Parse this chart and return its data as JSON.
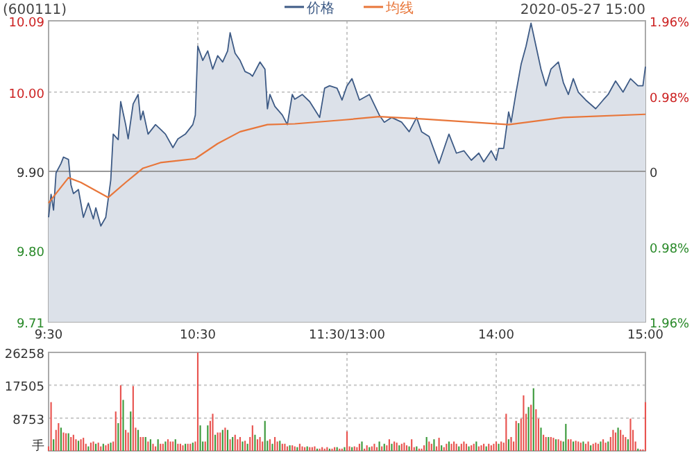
{
  "chart_data": [
    {
      "type": "area",
      "title": "(600111)",
      "annotations": [
        "2020-05-27 15:00"
      ],
      "legend": "top",
      "grid": true,
      "categories": [
        "9:30",
        null,
        null,
        null,
        null,
        null,
        null,
        null,
        null,
        null,
        null,
        null,
        null,
        null,
        null,
        null,
        null,
        null,
        null,
        null,
        null,
        null,
        null,
        null,
        null,
        null,
        null,
        null,
        null,
        null,
        null,
        null,
        null,
        null,
        null,
        null,
        null,
        null,
        null,
        null,
        null,
        null,
        null,
        null,
        null,
        null,
        null,
        null,
        null,
        null,
        null,
        null,
        null,
        null,
        null,
        null,
        null,
        null,
        null,
        null,
        "10:30",
        null,
        null,
        null,
        null,
        null,
        null,
        null,
        null,
        null,
        null,
        null,
        null,
        null,
        null,
        null,
        null,
        null,
        null,
        null,
        null,
        null,
        null,
        null,
        null,
        null,
        null,
        null,
        null,
        null,
        null,
        null,
        null,
        null,
        null,
        null,
        null,
        null,
        null,
        null,
        null,
        null,
        null,
        null,
        null,
        null,
        null,
        null,
        null,
        null,
        null,
        null,
        null,
        null,
        null,
        null,
        null,
        null,
        null,
        null,
        "11:30/13:00",
        null,
        null,
        null,
        null,
        null,
        null,
        null,
        null,
        null,
        null,
        null,
        null,
        null,
        null,
        null,
        null,
        null,
        null,
        null,
        null,
        null,
        null,
        null,
        null,
        null,
        null,
        null,
        null,
        null,
        null,
        null,
        null,
        null,
        null,
        null,
        null,
        null,
        null,
        null,
        null,
        null,
        null,
        null,
        null,
        null,
        null,
        null,
        null,
        null,
        null,
        null,
        null,
        null,
        null,
        null,
        null,
        null,
        null,
        null,
        "14:00",
        null,
        null,
        null,
        null,
        null,
        null,
        null,
        null,
        null,
        null,
        null,
        null,
        null,
        null,
        null,
        null,
        null,
        null,
        null,
        null,
        null,
        null,
        null,
        null,
        null,
        null,
        null,
        null,
        null,
        null,
        null,
        null,
        null,
        null,
        null,
        null,
        null,
        null,
        null,
        null,
        null,
        null,
        null,
        null,
        null,
        null,
        null,
        null,
        null,
        null,
        null,
        null,
        null,
        null,
        null,
        null,
        null,
        null,
        null,
        "15:00"
      ],
      "ylim": [
        9.71,
        10.09
      ],
      "yticks": [
        {
          "value": 9.71,
          "label": "9.71"
        },
        {
          "value": 9.8,
          "label": "9.80"
        },
        {
          "value": 9.9,
          "label": "9.90"
        },
        {
          "value": 10,
          "label": "10.00"
        },
        {
          "value": 10.09,
          "label": "10.09"
        }
      ],
      "y2lim": [
        -1.96,
        1.96
      ],
      "y2ticks": [
        {
          "value": -1.96,
          "label": "1.96%"
        },
        {
          "value": -0.98,
          "label": "0.98%"
        },
        0,
        {
          "value": 0.98,
          "label": "0.98%"
        },
        {
          "value": 1.96,
          "label": "1.96%"
        }
      ],
      "ref_lines": [
        {
          "axis": "y",
          "value": 9.9,
          "color": "#999999"
        }
      ],
      "series": [
        {
          "name": "价格",
          "type": "area",
          "color": "#3d5a85",
          "values": [
            9.842,
            9.871,
            9.851,
            9.898,
            null,
            9.91,
            9.918,
            null,
            9.915,
            9.883,
            9.872,
            null,
            9.877,
            null,
            9.842,
            null,
            9.86,
            null,
            9.84,
            9.854,
            null,
            9.831,
            null,
            9.842,
            null,
            9.889,
            9.947,
            null,
            9.94,
            9.988,
            null,
            9.959,
            9.941,
            null,
            9.985,
            null,
            9.997,
            9.965,
            9.976,
            null,
            9.947,
            null,
            null,
            9.959,
            null,
            9.953,
            null,
            9.947,
            null,
            null,
            9.93,
            null,
            9.941,
            null,
            null,
            9.947,
            null,
            null,
            9.959,
            9.971,
            10.058,
            null,
            10.04,
            null,
            10.052,
            null,
            10.029,
            null,
            10.046,
            null,
            10.038,
            null,
            10.052,
            10.075,
            null,
            10.049,
            null,
            10.04,
            null,
            10.026,
            null,
            10.023,
            10.02,
            null,
            10.032,
            10.038,
            null,
            10.029,
            9.979,
            9.997,
            null,
            9.982,
            null,
            null,
            9.971,
            null,
            9.959,
            null,
            9.997,
            9.991,
            null,
            null,
            9.997,
            null,
            null,
            9.988,
            null,
            null,
            null,
            9.968,
            null,
            10.005,
            null,
            10.008,
            null,
            null,
            10.005,
            null,
            9.99,
            null,
            10.008,
            null,
            10.017,
            null,
            null,
            9.99,
            null,
            null,
            null,
            9.997,
            null,
            null,
            null,
            9.971,
            null,
            9.962,
            null,
            null,
            9.968,
            null,
            null,
            null,
            9.962,
            null,
            null,
            9.95,
            null,
            null,
            9.968,
            null,
            9.95,
            null,
            null,
            9.944,
            null,
            null,
            null,
            9.91,
            null,
            null,
            null,
            9.947,
            null,
            null,
            9.923,
            null,
            null,
            9.926,
            null,
            null,
            9.914,
            null,
            null,
            9.923,
            null,
            9.912,
            null,
            null,
            9.926,
            null,
            9.914,
            9.929,
            null,
            9.929,
            null,
            9.975,
            9.962,
            null,
            10.0,
            null,
            10.035,
            null,
            10.058,
            null,
            10.087,
            null,
            10.058,
            null,
            10.029,
            null,
            10.008,
            null,
            10.029,
            null,
            null,
            10.038,
            null,
            10.012,
            null,
            9.997,
            null,
            10.017,
            null,
            10.0,
            null,
            null,
            9.99,
            null,
            null,
            null,
            9.979,
            null,
            null,
            9.99,
            null,
            9.997,
            null,
            null,
            10.014,
            null,
            null,
            10.0,
            null,
            null,
            10.017,
            null,
            null,
            10.008,
            null,
            10.008,
            10.032
          ]
        },
        {
          "name": "均线",
          "type": "line",
          "color": "#e8763a",
          "values": [
            9.86,
            null,
            null,
            null,
            null,
            null,
            null,
            null,
            9.892,
            null,
            null,
            null,
            null,
            9.886,
            null,
            null,
            null,
            null,
            null,
            null,
            null,
            null,
            null,
            null,
            9.867,
            null,
            null,
            null,
            null,
            null,
            null,
            9.886,
            null,
            null,
            null,
            null,
            null,
            null,
            9.904,
            null,
            null,
            null,
            null,
            null,
            null,
            9.911,
            null,
            null,
            null,
            null,
            null,
            null,
            null,
            null,
            null,
            null,
            null,
            null,
            null,
            9.916,
            null,
            null,
            null,
            null,
            null,
            null,
            null,
            null,
            9.935,
            null,
            null,
            null,
            null,
            null,
            null,
            null,
            null,
            9.95,
            null,
            null,
            null,
            null,
            null,
            null,
            null,
            null,
            null,
            null,
            9.959,
            null,
            null,
            null,
            null,
            null,
            null,
            null,
            null,
            null,
            null,
            9.96,
            null,
            null,
            null,
            null,
            null,
            null,
            null,
            null,
            null,
            null,
            null,
            null,
            null,
            null,
            null,
            null,
            null,
            null,
            null,
            9.965,
            null,
            null,
            null,
            null,
            null,
            null,
            null,
            null,
            null,
            null,
            null,
            null,
            null,
            9.969,
            null,
            null,
            null,
            null,
            null,
            null,
            null,
            null,
            null,
            null,
            null,
            null,
            null,
            null,
            null,
            null,
            null,
            9.966,
            null,
            null,
            null,
            null,
            null,
            null,
            null,
            null,
            null,
            null,
            null,
            null,
            null,
            null,
            null,
            null,
            null,
            null,
            null,
            null,
            null,
            null,
            null,
            null,
            null,
            null,
            null,
            null,
            null,
            null,
            null,
            null,
            null,
            9.959,
            null,
            null,
            null,
            null,
            null,
            null,
            null,
            null,
            null,
            null,
            null,
            null,
            null,
            null,
            null,
            null,
            null,
            null,
            null,
            null,
            null,
            9.968,
            null,
            null,
            null,
            null,
            null,
            null,
            null,
            null,
            null,
            null,
            null,
            null,
            null,
            null,
            null,
            null,
            null,
            null,
            null,
            null,
            null,
            null,
            null,
            null,
            null,
            null,
            null,
            null,
            null,
            null,
            null,
            null,
            9.972
          ]
        }
      ]
    },
    {
      "type": "bar",
      "grid": true,
      "tick_labels": "y",
      "categories": [
        null,
        null,
        null,
        null,
        null,
        null,
        null,
        null,
        null,
        null,
        null,
        null,
        null,
        null,
        null,
        null,
        null,
        null,
        null,
        null,
        null,
        null,
        null,
        null,
        null,
        null,
        null,
        null,
        null,
        null,
        null,
        null,
        null,
        null,
        null,
        null,
        null,
        null,
        null,
        null,
        null,
        null,
        null,
        null,
        null,
        null,
        null,
        null,
        null,
        null,
        null,
        null,
        null,
        null,
        null,
        null,
        null,
        null,
        null,
        null,
        null,
        null,
        null,
        null,
        null,
        null,
        null,
        null,
        null,
        null,
        null,
        null,
        null,
        null,
        null,
        null,
        null,
        null,
        null,
        null,
        null,
        null,
        null,
        null,
        null,
        null,
        null,
        null,
        null,
        null,
        null,
        null,
        null,
        null,
        null,
        null,
        null,
        null,
        null,
        null,
        null,
        null,
        null,
        null,
        null,
        null,
        null,
        null,
        null,
        null,
        null,
        null,
        null,
        null,
        null,
        null,
        null,
        null,
        null,
        null,
        null,
        null,
        null,
        null,
        null,
        null,
        null,
        null,
        null,
        null,
        null,
        null,
        null,
        null,
        null,
        null,
        null,
        null,
        null,
        null,
        null,
        null,
        null,
        null,
        null,
        null,
        null,
        null,
        null,
        null,
        null,
        null,
        null,
        null,
        null,
        null,
        null,
        null,
        null,
        null,
        null,
        null,
        null,
        null,
        null,
        null,
        null,
        null,
        null,
        null,
        null,
        null,
        null,
        null,
        null,
        null,
        null,
        null,
        null,
        null,
        null,
        null,
        null,
        null,
        null,
        null,
        null,
        null,
        null,
        null,
        null,
        null,
        null,
        null,
        null,
        null,
        null,
        null,
        null,
        null,
        null,
        null,
        null,
        null,
        null,
        null,
        null,
        null,
        null,
        null,
        null,
        null,
        null,
        null,
        null,
        null,
        null,
        null,
        null,
        null,
        null,
        null,
        null,
        null,
        null,
        null,
        null,
        null,
        null,
        null,
        null,
        null,
        null,
        null,
        null,
        null,
        null,
        null,
        null,
        null,
        null
      ],
      "ylim": [
        0,
        26258
      ],
      "yticks": [
        {
          "value": 0,
          "label": "手"
        },
        8753,
        17505,
        26258
      ],
      "values": [
        1200,
        13000,
        3100,
        5600,
        7400,
        6200,
        4900,
        4700,
        4700,
        3700,
        4300,
        3100,
        2700,
        3100,
        3500,
        1900,
        1200,
        2200,
        2500,
        1900,
        2200,
        1200,
        1900,
        1500,
        1900,
        2200,
        2500,
        10500,
        7400,
        17500,
        13600,
        5600,
        4900,
        10500,
        17300,
        6200,
        5600,
        3700,
        3700,
        3700,
        2500,
        3100,
        1900,
        1200,
        3100,
        1900,
        1900,
        2500,
        3100,
        2500,
        2500,
        3100,
        1900,
        1900,
        1500,
        1900,
        1900,
        1900,
        2200,
        2500,
        26200,
        6800,
        2500,
        2500,
        6800,
        8000,
        9900,
        4300,
        4900,
        4900,
        5600,
        6200,
        5600,
        3100,
        3700,
        4300,
        3100,
        3700,
        2500,
        2700,
        1900,
        3700,
        6800,
        4300,
        3100,
        3700,
        2500,
        8000,
        2700,
        3100,
        1900,
        3700,
        2500,
        2700,
        1900,
        1900,
        1200,
        1500,
        1500,
        1200,
        1000,
        1900,
        1200,
        1000,
        1200,
        1000,
        1000,
        1200,
        600,
        600,
        1000,
        600,
        1000,
        600,
        600,
        1000,
        1000,
        600,
        600,
        1000,
        5200,
        1200,
        1000,
        1200,
        1000,
        1900,
        2500,
        600,
        1500,
        1000,
        1200,
        1900,
        1000,
        2500,
        1200,
        1900,
        1500,
        3100,
        1900,
        2500,
        2200,
        1500,
        1900,
        2200,
        1500,
        1200,
        3100,
        1000,
        1200,
        600,
        600,
        1500,
        3700,
        2500,
        1900,
        3100,
        1200,
        3500,
        1500,
        1000,
        1900,
        2500,
        1900,
        2500,
        1900,
        1200,
        1900,
        2500,
        1900,
        1200,
        1500,
        1900,
        2500,
        1200,
        1500,
        1900,
        1200,
        1900,
        1500,
        1900,
        2500,
        1900,
        2500,
        2200,
        9900,
        3100,
        3700,
        2500,
        8000,
        7400,
        8600,
        14800,
        9900,
        11700,
        12300,
        16700,
        11100,
        8600,
        6200,
        4300,
        3700,
        3700,
        3700,
        3500,
        3100,
        3100,
        2700,
        2500,
        7200,
        3100,
        3100,
        2500,
        2700,
        2500,
        2200,
        2500,
        1900,
        2500,
        1500,
        1900,
        2200,
        1900,
        2500,
        3100,
        2200,
        2500,
        3700,
        5600,
        4900,
        6200,
        5600,
        4300,
        3700,
        3100,
        8600,
        5600,
        2500,
        600,
        400,
        400,
        13000
      ],
      "colors": [
        "#e8534f",
        "#e8534f",
        "#3c9a3c",
        "#e8534f",
        "#e8534f",
        "#3c9a3c",
        "#e8534f",
        "#e8534f",
        "#3c9a3c",
        "#e8534f",
        "#e8534f",
        "#e8534f",
        "#3c9a3c",
        "#e8534f",
        "#e8534f",
        "#e8534f",
        "#3c9a3c",
        "#e8534f",
        "#e8534f",
        "#3c9a3c",
        "#e8534f",
        "#e8534f",
        "#3c9a3c",
        "#e8534f",
        "#e8534f",
        "#3c9a3c",
        "#e8534f",
        "#e8534f",
        "#3c9a3c",
        "#e8534f",
        "#3c9a3c",
        "#e8534f",
        "#e8534f",
        "#3c9a3c",
        "#e8534f",
        "#e8534f",
        "#3c9a3c",
        "#e8534f",
        "#e8534f",
        "#3c9a3c",
        "#e8534f",
        "#3c9a3c",
        "#e8534f",
        "#e8534f",
        "#3c9a3c",
        "#e8534f",
        "#e8534f",
        "#3c9a3c",
        "#e8534f",
        "#e8534f",
        "#e8534f",
        "#3c9a3c",
        "#e8534f",
        "#e8534f",
        "#e8534f",
        "#3c9a3c",
        "#e8534f",
        "#e8534f",
        "#3c9a3c",
        "#e8534f",
        "#e8534f",
        "#3c9a3c",
        "#3c9a3c",
        "#e8534f",
        "#3c9a3c",
        "#e8534f",
        "#e8534f",
        "#3c9a3c",
        "#e8534f",
        "#e8534f",
        "#3c9a3c",
        "#e8534f",
        "#3c9a3c",
        "#e8534f",
        "#3c9a3c",
        "#e8534f",
        "#e8534f",
        "#e8534f",
        "#3c9a3c",
        "#e8534f",
        "#3c9a3c",
        "#e8534f",
        "#e8534f",
        "#3c9a3c",
        "#e8534f",
        "#e8534f",
        "#e8534f",
        "#3c9a3c",
        "#3c9a3c",
        "#e8534f",
        "#3c9a3c",
        "#e8534f",
        "#e8534f",
        "#3c9a3c",
        "#e8534f",
        "#e8534f",
        "#e8534f",
        "#3c9a3c",
        "#e8534f",
        "#e8534f",
        "#3c9a3c",
        "#e8534f",
        "#e8534f",
        "#e8534f",
        "#3c9a3c",
        "#e8534f",
        "#e8534f",
        "#e8534f",
        "#3c9a3c",
        "#e8534f",
        "#e8534f",
        "#e8534f",
        "#e8534f",
        "#3c9a3c",
        "#e8534f",
        "#e8534f",
        "#3c9a3c",
        "#e8534f",
        "#e8534f",
        "#3c9a3c",
        "#e8534f",
        "#e8534f",
        "#3c9a3c",
        "#e8534f",
        "#e8534f",
        "#e8534f",
        "#3c9a3c",
        "#e8534f",
        "#e8534f",
        "#3c9a3c",
        "#e8534f",
        "#e8534f",
        "#e8534f",
        "#3c9a3c",
        "#e8534f",
        "#3c9a3c",
        "#e8534f",
        "#e8534f",
        "#3c9a3c",
        "#e8534f",
        "#e8534f",
        "#3c9a3c",
        "#e8534f",
        "#e8534f",
        "#e8534f",
        "#3c9a3c",
        "#e8534f",
        "#e8534f",
        "#3c9a3c",
        "#e8534f",
        "#e8534f",
        "#e8534f",
        "#3c9a3c",
        "#e8534f",
        "#e8534f",
        "#3c9a3c",
        "#e8534f",
        "#e8534f",
        "#3c9a3c",
        "#e8534f",
        "#e8534f",
        "#3c9a3c",
        "#e8534f",
        "#e8534f",
        "#e8534f",
        "#3c9a3c",
        "#e8534f",
        "#e8534f",
        "#e8534f",
        "#3c9a3c",
        "#e8534f",
        "#e8534f",
        "#3c9a3c",
        "#e8534f",
        "#e8534f",
        "#e8534f",
        "#3c9a3c",
        "#e8534f",
        "#e8534f",
        "#e8534f",
        "#e8534f",
        "#3c9a3c",
        "#e8534f",
        "#e8534f",
        "#e8534f",
        "#3c9a3c",
        "#e8534f",
        "#e8534f",
        "#e8534f",
        "#3c9a3c",
        "#e8534f",
        "#e8534f",
        "#e8534f",
        "#3c9a3c",
        "#e8534f",
        "#3c9a3c",
        "#e8534f",
        "#e8534f",
        "#3c9a3c",
        "#e8534f",
        "#e8534f",
        "#3c9a3c",
        "#e8534f",
        "#e8534f",
        "#3c9a3c",
        "#e8534f",
        "#e8534f",
        "#3c9a3c",
        "#3c9a3c",
        "#e8534f",
        "#e8534f",
        "#3c9a3c",
        "#e8534f",
        "#e8534f",
        "#e8534f",
        "#3c9a3c",
        "#e8534f",
        "#e8534f",
        "#3c9a3c",
        "#e8534f",
        "#e8534f",
        "#e8534f",
        "#3c9a3c",
        "#e8534f",
        "#e8534f",
        "#3c9a3c",
        "#e8534f",
        "#e8534f",
        "#e8534f",
        "#3c9a3c",
        "#e8534f",
        "#e8534f",
        "#e8534f",
        "#3c9a3c",
        "#e8534f",
        "#e8534f",
        "#e8534f",
        "#3c9a3c",
        "#e8534f",
        "#e8534f",
        "#e8534f"
      ]
    }
  ]
}
